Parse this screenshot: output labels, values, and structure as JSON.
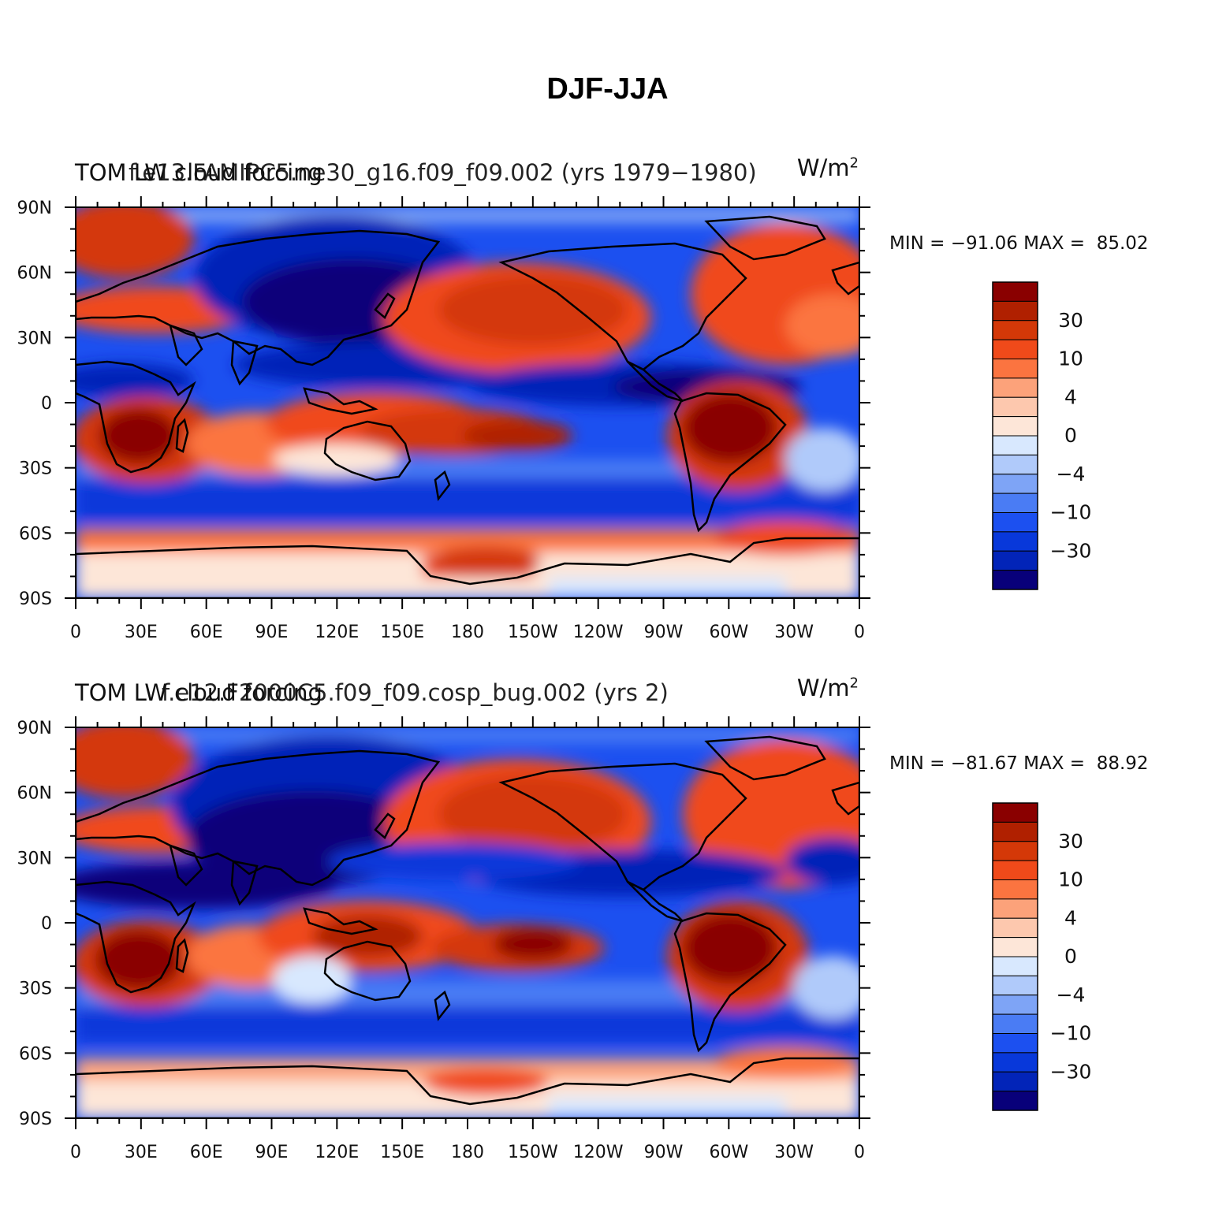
{
  "figure": {
    "title": "DJF-JJA"
  },
  "colors": {
    "levels": [
      "#08007a",
      "#0224b8",
      "#0838da",
      "#1c50f0",
      "#4a7cf4",
      "#7ea4f6",
      "#b0cafa",
      "#d8e8fe",
      "#fde6d8",
      "#fdc8ae",
      "#fca27a",
      "#fb7440",
      "#f04a1a",
      "#d43808",
      "#b02000",
      "#8a0000"
    ],
    "coastline": "#000000"
  },
  "colorbar": {
    "labels": [
      "30",
      "10",
      "4",
      "0",
      "−4",
      "−10",
      "−30"
    ]
  },
  "axes": {
    "lat_ticks": [
      "90N",
      "60N",
      "30N",
      "0",
      "30S",
      "60S",
      "90S"
    ],
    "lon_ticks": [
      "0",
      "30E",
      "60E",
      "90E",
      "120E",
      "150E",
      "180",
      "150W",
      "120W",
      "90W",
      "60W",
      "30W",
      "0"
    ]
  },
  "panels": [
    {
      "left_label": "TOM LW cloud forcing",
      "center_label": "f.e13.FAMIPC5.ne30_g16.f09_f09.002 (yrs 1979−1980)",
      "units": "W/m",
      "units_sup": "2",
      "min_label": "MIN = −91.06 MAX =",
      "max_value": "85.02",
      "min_value": -91.06,
      "max_value_num": 85.02
    },
    {
      "left_label": "TOM LW cloud forcing",
      "center_label": "f.e12.F2000C5.f09_f09.cosp_bug.002 (yrs 2)",
      "units": "W/m",
      "units_sup": "2",
      "min_label": "MIN = −81.67 MAX =",
      "max_value": "88.92",
      "min_value": -81.67,
      "max_value_num": 88.92
    }
  ]
}
